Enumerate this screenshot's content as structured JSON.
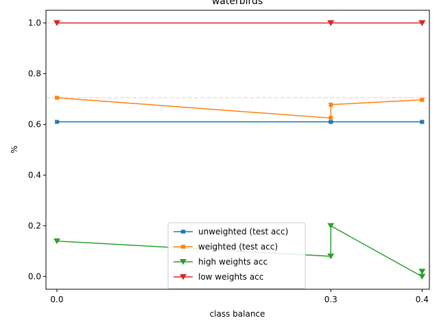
{
  "chart_data": {
    "type": "line",
    "title": "waterbirds",
    "xlabel": "class balance",
    "ylabel": "%",
    "xlim": [
      -0.012,
      0.408
    ],
    "ylim": [
      -0.05,
      1.05
    ],
    "xticks": [
      0.0,
      0.3,
      0.4
    ],
    "xtick_labels": [
      "0.0",
      "0.3",
      "0.4"
    ],
    "yticks": [
      0.0,
      0.2,
      0.4,
      0.6,
      0.8,
      1.0
    ],
    "ytick_labels": [
      "0.0",
      "0.2",
      "0.4",
      "0.6",
      "0.8",
      "1.0"
    ],
    "grid": false,
    "legend_position": "bottom-center",
    "reference_lines": [
      {
        "y": 1.0,
        "color": "#ffcccc",
        "style": "dashed"
      },
      {
        "y": 0.705,
        "color": "#ffcccc",
        "style": "dashed"
      }
    ],
    "series": [
      {
        "name": "unweighted (test acc)",
        "color": "#1f77b4",
        "marker": "X",
        "x": [
          0.0,
          0.3,
          0.3,
          0.4,
          0.4
        ],
        "y": [
          0.61,
          0.61,
          0.61,
          0.61,
          0.61
        ]
      },
      {
        "name": "weighted (test acc)",
        "color": "#ff7f0e",
        "marker": "X",
        "x": [
          0.0,
          0.3,
          0.3,
          0.4,
          0.4
        ],
        "y": [
          0.705,
          0.625,
          0.678,
          0.697,
          0.697
        ]
      },
      {
        "name": "high weights acc",
        "color": "#2ca02c",
        "marker": "v",
        "x": [
          0.0,
          0.3,
          0.3,
          0.4,
          0.4
        ],
        "y": [
          0.14,
          0.08,
          0.2,
          0.0,
          0.02
        ]
      },
      {
        "name": "low weights acc",
        "color": "#d62728",
        "marker": "v",
        "x": [
          0.0,
          0.3,
          0.3,
          0.4,
          0.4
        ],
        "y": [
          1.0,
          1.0,
          1.0,
          1.0,
          1.0
        ]
      }
    ]
  }
}
